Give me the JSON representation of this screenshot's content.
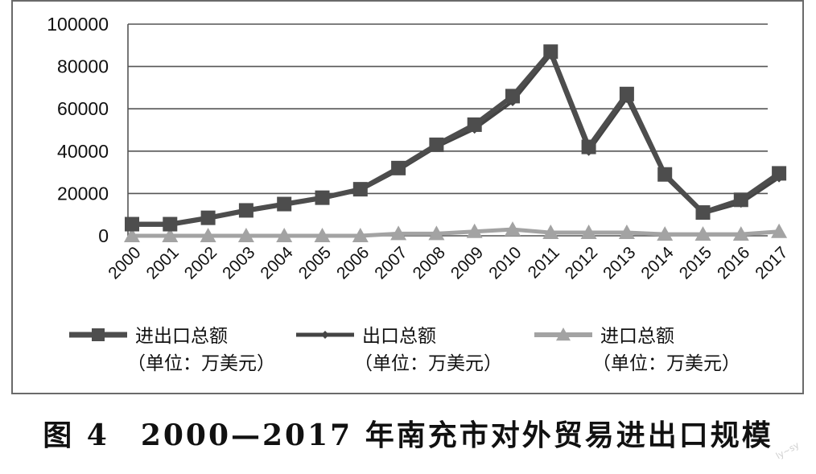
{
  "caption": "图 4　2000—2017 年南充市对外贸易进出口规模",
  "watermark": "ly~sy",
  "chart_data": {
    "type": "line",
    "title": "",
    "xlabel": "",
    "ylabel": "",
    "ylim": [
      0,
      100000
    ],
    "yticks": [
      0,
      20000,
      40000,
      60000,
      80000,
      100000
    ],
    "grid": "horizontal",
    "legend_placement": "bottom",
    "categories": [
      "2000",
      "2001",
      "2002",
      "2003",
      "2004",
      "2005",
      "2006",
      "2007",
      "2008",
      "2009",
      "2010",
      "2011",
      "2012",
      "2013",
      "2014",
      "2015",
      "2016",
      "2017"
    ],
    "series": [
      {
        "name": "进出口总额",
        "unit_note": "（单位：万美元）",
        "marker": "square",
        "color": "#4d4d4d",
        "values": [
          5500,
          5500,
          8500,
          12000,
          15000,
          18000,
          22000,
          32000,
          43000,
          52500,
          66000,
          87000,
          42000,
          67000,
          29000,
          11000,
          17000,
          29500
        ]
      },
      {
        "name": "出口总额",
        "unit_note": "（单位：万美元）",
        "marker": "diamond",
        "color": "#444444",
        "values": [
          5000,
          5000,
          8000,
          11500,
          14500,
          17500,
          21500,
          31000,
          42000,
          50500,
          63500,
          85500,
          40000,
          65000,
          28000,
          10500,
          15500,
          27500
        ]
      },
      {
        "name": "进口总额",
        "unit_note": "（单位：万美元）",
        "marker": "triangle",
        "color": "#a3a3a3",
        "values": [
          0,
          0,
          0,
          0,
          0,
          0,
          0,
          1000,
          1000,
          2000,
          3000,
          1500,
          1500,
          1500,
          700,
          700,
          700,
          2000
        ]
      }
    ]
  }
}
